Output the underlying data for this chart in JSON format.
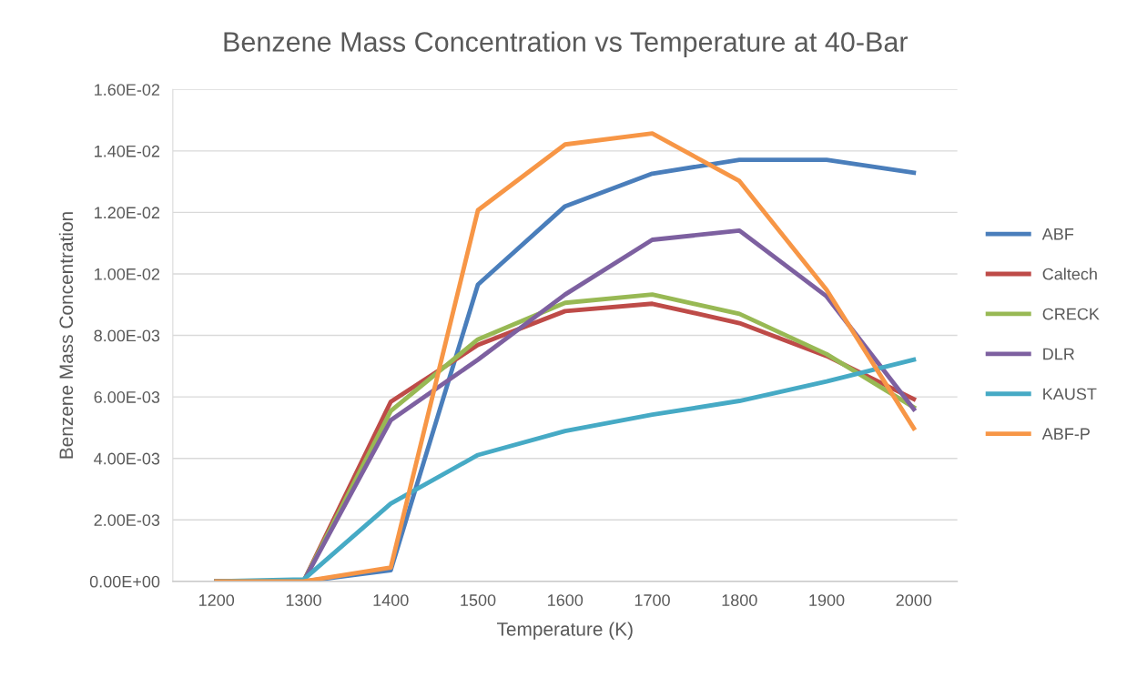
{
  "chart_data": {
    "type": "line",
    "title": "Benzene Mass Concentration vs Temperature at 40-Bar",
    "xlabel": "Temperature (K)",
    "ylabel": "Benzene Mass Concentration",
    "categories": [
      "1200",
      "1300",
      "1400",
      "1500",
      "1600",
      "1700",
      "1800",
      "1900",
      "2000"
    ],
    "series": [
      {
        "name": "ABF",
        "color": "#4a7ebb",
        "values": [
          0,
          0,
          0.00036,
          0.00965,
          0.0122,
          0.01326,
          0.01371,
          0.01371,
          0.01329
        ]
      },
      {
        "name": "Caltech",
        "color": "#be4b48",
        "values": [
          0,
          0,
          0.00584,
          0.00769,
          0.00879,
          0.00903,
          0.0084,
          0.00733,
          0.00593
        ]
      },
      {
        "name": "CRECK",
        "color": "#98b954",
        "values": [
          0,
          0,
          0.00554,
          0.00787,
          0.00906,
          0.00933,
          0.0087,
          0.00739,
          0.00566
        ]
      },
      {
        "name": "DLR",
        "color": "#7d60a0",
        "values": [
          0,
          0,
          0.00524,
          0.00721,
          0.00933,
          0.01111,
          0.01141,
          0.00927,
          0.0056
        ]
      },
      {
        "name": "KAUST",
        "color": "#46aac5",
        "values": [
          0,
          6e-05,
          0.00253,
          0.00411,
          0.00489,
          0.00542,
          0.00587,
          0.0065,
          0.00721
        ]
      },
      {
        "name": "ABF-P",
        "color": "#f79646",
        "values": [
          0,
          0,
          0.00045,
          0.01207,
          0.01421,
          0.01457,
          0.01302,
          0.00948,
          0.00498
        ]
      }
    ],
    "ylim": [
      0,
      0.016
    ],
    "yticks": [
      {
        "value": 0,
        "label": "0.00E+00"
      },
      {
        "value": 0.002,
        "label": "2.00E-03"
      },
      {
        "value": 0.004,
        "label": "4.00E-03"
      },
      {
        "value": 0.006,
        "label": "6.00E-03"
      },
      {
        "value": 0.008,
        "label": "8.00E-03"
      },
      {
        "value": 0.01,
        "label": "1.00E-02"
      },
      {
        "value": 0.012,
        "label": "1.20E-02"
      },
      {
        "value": 0.014,
        "label": "1.40E-02"
      },
      {
        "value": 0.016,
        "label": "1.60E-02"
      }
    ],
    "grid": "y",
    "legend": "right",
    "marker": "none",
    "line_style": "solid"
  }
}
